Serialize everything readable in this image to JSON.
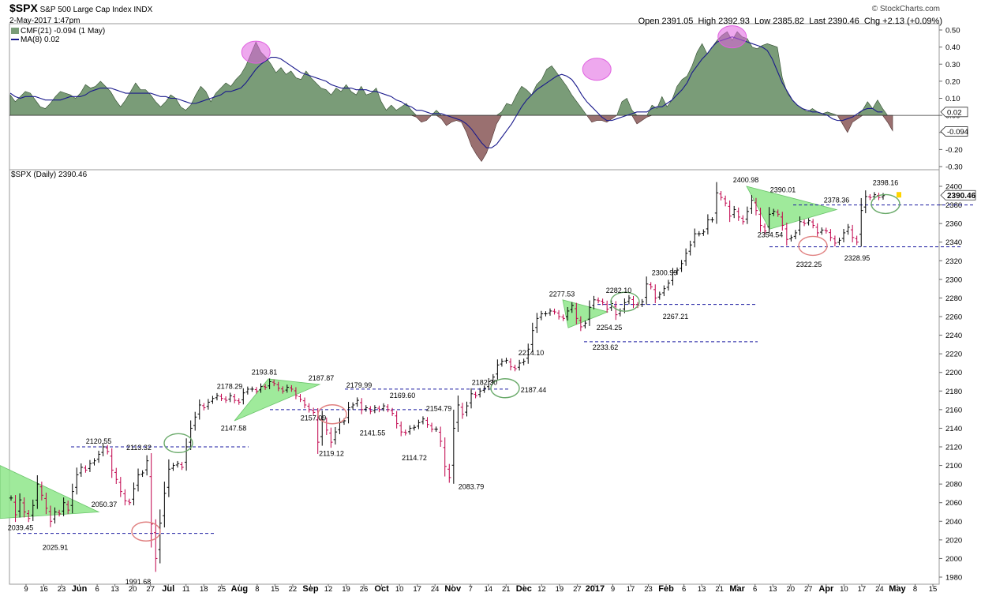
{
  "header": {
    "symbol": "$SPX",
    "name": "S&P 500 Large Cap Index",
    "exchange": "INDX",
    "datetime": "2-May-2017 1:47pm",
    "brand": "© StockCharts.com",
    "open_label": "Open",
    "open": "2391.05",
    "high_label": "High",
    "high": "2392.93",
    "low_label": "Low",
    "low": "2385.82",
    "last_label": "Last",
    "last": "2390.46",
    "chg_label": "Chg",
    "chg": "+2.13 (+0.09%)"
  },
  "cmf_panel": {
    "legend_main": "CMF(21) -0.094 (1 May)",
    "legend_ma": "MA(8) 0.02",
    "current_value_badge": "-0.094",
    "ma_value_badge": "0.02"
  },
  "price_panel": {
    "legend": "$SPX (Daily) 2390.46",
    "last_badge": "2390.46"
  },
  "colors": {
    "cmf_positive": "#7a9c78",
    "cmf_negative": "#9a7070",
    "ma_line": "#1a1a8c",
    "triangle": "#8ee68a",
    "bar_up": "#000000",
    "bar_down": "#c0004a",
    "hline": "#1a1aa0",
    "circle_magenta": "#e060e0",
    "circle_green": "#6aaa6a",
    "circle_red": "#e08080"
  },
  "chart_data": [
    {
      "type": "area",
      "title": "CMF(21) -0.094 (1 May)",
      "ylim": [
        -0.3,
        0.5
      ],
      "yticks": [
        "0.50",
        "0.40",
        "0.30",
        "0.20",
        "0.10",
        "0.00",
        "-0.10",
        "-0.20",
        "-0.30"
      ],
      "series": [
        {
          "name": "CMF(21)",
          "values": [
            0.12,
            0.08,
            0.11,
            0.14,
            0.13,
            0.09,
            0.05,
            0.04,
            0.07,
            0.11,
            0.14,
            0.13,
            0.12,
            0.1,
            0.13,
            0.18,
            0.16,
            0.17,
            0.2,
            0.17,
            0.14,
            0.09,
            0.05,
            0.09,
            0.14,
            0.19,
            0.15,
            0.15,
            0.12,
            0.08,
            0.05,
            0.08,
            0.12,
            0.1,
            0.05,
            0.03,
            0.06,
            0.12,
            0.17,
            0.14,
            0.08,
            0.13,
            0.16,
            0.19,
            0.17,
            0.21,
            0.24,
            0.29,
            0.36,
            0.43,
            0.37,
            0.34,
            0.3,
            0.25,
            0.28,
            0.24,
            0.26,
            0.22,
            0.21,
            0.26,
            0.22,
            0.19,
            0.16,
            0.15,
            0.12,
            0.16,
            0.14,
            0.18,
            0.14,
            0.12,
            0.17,
            0.12,
            0.13,
            0.16,
            0.08,
            0.03,
            0.06,
            0.03,
            0.05,
            0.07,
            0.03,
            -0.01,
            -0.04,
            -0.03,
            0.0,
            0.03,
            -0.02,
            -0.06,
            -0.04,
            -0.03,
            -0.04,
            -0.1,
            -0.18,
            -0.23,
            -0.27,
            -0.22,
            -0.14,
            -0.05,
            0.02,
            0.07,
            0.06,
            0.12,
            0.17,
            0.15,
            0.12,
            0.18,
            0.21,
            0.27,
            0.29,
            0.25,
            0.21,
            0.17,
            0.12,
            0.08,
            0.04,
            0.0,
            -0.04,
            -0.03,
            -0.03,
            -0.04,
            -0.02,
            0.0,
            0.08,
            0.1,
            0.03,
            -0.05,
            -0.03,
            -0.01,
            0.06,
            0.04,
            0.11,
            0.05,
            0.09,
            0.17,
            0.21,
            0.23,
            0.29,
            0.37,
            0.42,
            0.36,
            0.4,
            0.44,
            0.47,
            0.49,
            0.44,
            0.49,
            0.46,
            0.45,
            0.4,
            0.39,
            0.41,
            0.42,
            0.41,
            0.4,
            0.22,
            0.13,
            0.09,
            0.06,
            0.04,
            0.02,
            0.04,
            0.02,
            0.01,
            0.02,
            0.01,
            0.0,
            -0.05,
            -0.1,
            -0.04,
            -0.02,
            0.03,
            0.08,
            0.04,
            0.09,
            0.04,
            -0.04,
            -0.09
          ]
        },
        {
          "name": "MA(8)",
          "values": [
            0.13,
            0.11,
            0.1,
            0.11,
            0.11,
            0.11,
            0.1,
            0.09,
            0.09,
            0.09,
            0.09,
            0.1,
            0.11,
            0.11,
            0.11,
            0.12,
            0.14,
            0.15,
            0.16,
            0.16,
            0.16,
            0.15,
            0.14,
            0.13,
            0.13,
            0.13,
            0.13,
            0.13,
            0.13,
            0.12,
            0.11,
            0.11,
            0.1,
            0.1,
            0.09,
            0.08,
            0.07,
            0.07,
            0.08,
            0.09,
            0.1,
            0.11,
            0.12,
            0.14,
            0.14,
            0.15,
            0.16,
            0.19,
            0.23,
            0.27,
            0.3,
            0.32,
            0.34,
            0.34,
            0.33,
            0.31,
            0.29,
            0.27,
            0.25,
            0.24,
            0.23,
            0.22,
            0.21,
            0.2,
            0.18,
            0.17,
            0.16,
            0.16,
            0.16,
            0.15,
            0.15,
            0.15,
            0.14,
            0.14,
            0.13,
            0.12,
            0.11,
            0.09,
            0.08,
            0.06,
            0.05,
            0.03,
            0.03,
            0.02,
            0.01,
            0.01,
            0.01,
            0.0,
            -0.01,
            -0.02,
            -0.03,
            -0.05,
            -0.08,
            -0.12,
            -0.16,
            -0.19,
            -0.19,
            -0.17,
            -0.13,
            -0.09,
            -0.05,
            0.0,
            0.05,
            0.09,
            0.12,
            0.15,
            0.17,
            0.19,
            0.21,
            0.23,
            0.24,
            0.23,
            0.21,
            0.17,
            0.12,
            0.08,
            0.05,
            0.02,
            -0.01,
            -0.03,
            -0.03,
            -0.02,
            -0.01,
            0.0,
            0.01,
            0.02,
            0.02,
            0.02,
            0.04,
            0.05,
            0.05,
            0.07,
            0.09,
            0.12,
            0.15,
            0.19,
            0.25,
            0.29,
            0.33,
            0.36,
            0.4,
            0.43,
            0.44,
            0.45,
            0.46,
            0.45,
            0.44,
            0.43,
            0.42,
            0.41,
            0.4,
            0.38,
            0.33,
            0.26,
            0.19,
            0.14,
            0.09,
            0.06,
            0.04,
            0.03,
            0.02,
            0.02,
            0.01,
            0.0,
            -0.02,
            -0.03,
            -0.03,
            -0.02,
            -0.01,
            0.01,
            0.03,
            0.04,
            0.04,
            0.02,
            0.02
          ]
        }
      ]
    },
    {
      "type": "bar",
      "title": "$SPX (Daily) 2390.46",
      "ylim": [
        1980,
        2400
      ],
      "yticks": [
        "2400",
        "2380",
        "2360",
        "2340",
        "2320",
        "2300",
        "2280",
        "2260",
        "2240",
        "2220",
        "2200",
        "2180",
        "2160",
        "2140",
        "2120",
        "2100",
        "2080",
        "2060",
        "2040",
        "2020",
        "2000",
        "1980"
      ],
      "x_labels": [
        "9",
        "16",
        "23",
        "Jun",
        "6",
        "13",
        "20",
        "27",
        "Jul",
        "11",
        "18",
        "25",
        "Aug",
        "8",
        "15",
        "22",
        "Sep",
        "12",
        "19",
        "26",
        "Oct",
        "10",
        "17",
        "24",
        "Nov",
        "7",
        "14",
        "21",
        "Dec",
        "12",
        "19",
        "27",
        "2017",
        "9",
        "17",
        "23",
        "Feb",
        "6",
        "13",
        "21",
        "Mar",
        "6",
        "13",
        "20",
        "27",
        "Apr",
        "10",
        "17",
        "24",
        "May",
        "8",
        "15"
      ],
      "closes": [
        2065,
        2047,
        2063,
        2050,
        2043,
        2057,
        2080,
        2068,
        2054,
        2040,
        2050,
        2048,
        2060,
        2052,
        2072,
        2090,
        2098,
        2095,
        2102,
        2105,
        2112,
        2120,
        2115,
        2095,
        2085,
        2072,
        2062,
        2060,
        2075,
        2090,
        2092,
        2105,
        2037,
        2000,
        2038,
        2070,
        2096,
        2100,
        2102,
        2098,
        2120,
        2140,
        2152,
        2165,
        2162,
        2168,
        2172,
        2175,
        2172,
        2170,
        2175,
        2170,
        2168,
        2178,
        2182,
        2182,
        2180,
        2185,
        2184,
        2190,
        2188,
        2183,
        2180,
        2184,
        2182,
        2175,
        2171,
        2165,
        2160,
        2157,
        2125,
        2149,
        2138,
        2125,
        2136,
        2146,
        2148,
        2162,
        2165,
        2170,
        2160,
        2162,
        2158,
        2162,
        2160,
        2164,
        2160,
        2156,
        2145,
        2136,
        2135,
        2140,
        2141,
        2146,
        2150,
        2144,
        2139,
        2139,
        2126,
        2099,
        2087,
        2140,
        2165,
        2155,
        2164,
        2177,
        2175,
        2180,
        2183,
        2190,
        2195,
        2208,
        2212,
        2213,
        2206,
        2204,
        2210,
        2212,
        2225,
        2245,
        2258,
        2263,
        2263,
        2266,
        2265,
        2260,
        2258,
        2266,
        2272,
        2258,
        2249,
        2253,
        2270,
        2278,
        2277,
        2275,
        2268,
        2274,
        2262,
        2266,
        2275,
        2280,
        2273,
        2272,
        2276,
        2295,
        2292,
        2280,
        2284,
        2290,
        2296,
        2307,
        2310,
        2317,
        2328,
        2337,
        2349,
        2349,
        2351,
        2364,
        2364,
        2393,
        2388,
        2382,
        2368,
        2375,
        2367,
        2362,
        2373,
        2385,
        2374,
        2358,
        2352,
        2370,
        2373,
        2370,
        2358,
        2343,
        2345,
        2350,
        2362,
        2360,
        2363,
        2358,
        2350,
        2353,
        2352,
        2345,
        2339,
        2342,
        2350,
        2356,
        2345,
        2340,
        2374,
        2389,
        2388,
        2391,
        2388,
        2390
      ],
      "annotations": [
        "2039.45",
        "2025.91",
        "2050.37",
        "2120.55",
        "2113.32",
        "1991.68",
        "2178.29",
        "2193.81",
        "2187.87",
        "2147.58",
        "2157.09",
        "2119.12",
        "2179.99",
        "2169.60",
        "2141.55",
        "2154.79",
        "2114.72",
        "2083.79",
        "2182.30",
        "2187.44",
        "2214.10",
        "2277.53",
        "2233.62",
        "2282.10",
        "2254.25",
        "2300.99",
        "2267.21",
        "2400.98",
        "2390.01",
        "2354.54",
        "2378.36",
        "2322.25",
        "2328.95",
        "2398.16"
      ],
      "hlines": [
        2120,
        2027,
        2182,
        2160,
        2273,
        2233,
        2380,
        2335
      ],
      "legend": "top-left"
    }
  ]
}
